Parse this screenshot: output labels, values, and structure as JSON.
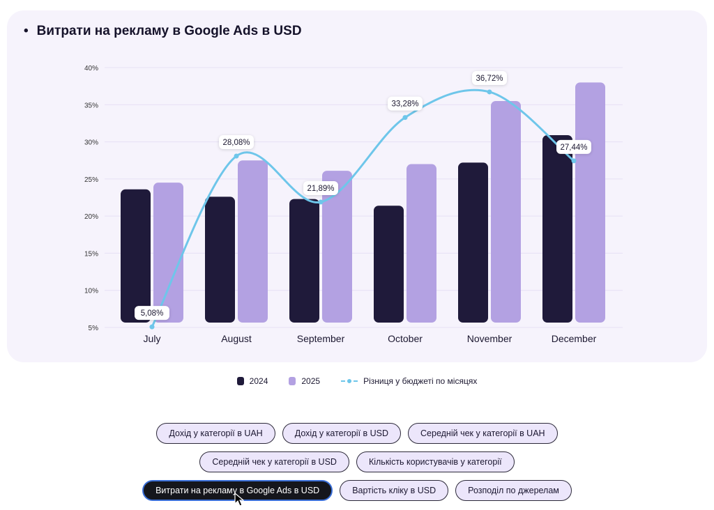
{
  "title": "Витрати на рекламу в Google Ads в USD",
  "bullet": "•",
  "chart_data": {
    "type": "bar",
    "title": "Витрати на рекламу в Google Ads в USD",
    "categories": [
      "July",
      "August",
      "September",
      "October",
      "November",
      "December"
    ],
    "series": [
      {
        "name": "2024",
        "type": "bar",
        "color": "#1f1a3a",
        "values": [
          23.6,
          22.6,
          22.3,
          21.4,
          27.2,
          30.9
        ]
      },
      {
        "name": "2025",
        "type": "bar",
        "color": "#b3a1e2",
        "values": [
          24.5,
          27.5,
          26.1,
          27.0,
          35.5,
          38.0
        ]
      },
      {
        "name": "Різниця у бюджеті по місяцях",
        "type": "line",
        "color": "#6ec6ea",
        "values": [
          5.08,
          28.08,
          21.89,
          33.28,
          36.72,
          27.44
        ],
        "labels": [
          "5,08%",
          "28,08%",
          "21,89%",
          "33,28%",
          "36,72%",
          "27,44%"
        ]
      }
    ],
    "yticks": [
      "5%",
      "10%",
      "15%",
      "20%",
      "25%",
      "30%",
      "35%",
      "40%"
    ],
    "ylim": [
      5,
      40
    ],
    "grid": true,
    "legend": "bottom-center",
    "xlabel": "",
    "ylabel": ""
  },
  "legend": [
    {
      "label": "2024"
    },
    {
      "label": "2025"
    },
    {
      "label": "Різниця у бюджеті по місяцях"
    }
  ],
  "buttons": [
    [
      "Дохід у категорії в UAH",
      "Дохід у категорії в USD",
      "Середній чек у категорії в UAH"
    ],
    [
      "Середній чек у категорії в USD",
      "Кількість користувачів у категорії"
    ],
    [
      "Витрати на рекламу в Google Ads в USD",
      "Вартість кліку в USD",
      "Розподіл по джерелам"
    ]
  ],
  "active_button": "Витрати на рекламу в Google Ads в USD"
}
